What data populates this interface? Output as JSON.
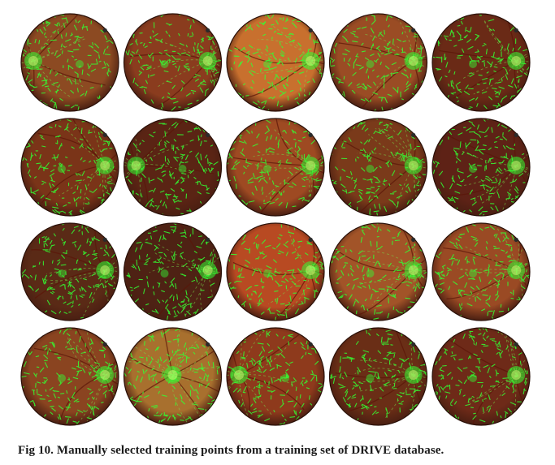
{
  "figure": {
    "rows": 4,
    "cols": 5,
    "caption": "Fig 10.  Manually selected training points from a training set of DRIVE database.",
    "colors": {
      "fundus_dark": "#4a1f12",
      "fundus_mid": "#8a3a1c",
      "fundus_bright": "#c96a2a",
      "training_points": "#33ff33",
      "vessel_overlay": "#7adf4a"
    },
    "images": [
      {
        "tone": "#8c4a22",
        "disc": "left"
      },
      {
        "tone": "#8a3c1e",
        "disc": "right"
      },
      {
        "tone": "#c8702e",
        "disc": "right"
      },
      {
        "tone": "#9a4c24",
        "disc": "right"
      },
      {
        "tone": "#6a2a16",
        "disc": "right"
      },
      {
        "tone": "#7a3418",
        "disc": "right"
      },
      {
        "tone": "#5a2414",
        "disc": "left"
      },
      {
        "tone": "#9e4a22",
        "disc": "right"
      },
      {
        "tone": "#7a3a1a",
        "disc": "right"
      },
      {
        "tone": "#5e2216",
        "disc": "right"
      },
      {
        "tone": "#5a2a16",
        "disc": "right"
      },
      {
        "tone": "#4e2214",
        "disc": "right"
      },
      {
        "tone": "#b84a22",
        "disc": "right"
      },
      {
        "tone": "#a25428",
        "disc": "right"
      },
      {
        "tone": "#9a4a24",
        "disc": "right"
      },
      {
        "tone": "#8a4420",
        "disc": "right"
      },
      {
        "tone": "#a8702e",
        "disc": "center"
      },
      {
        "tone": "#8e3a1c",
        "disc": "left"
      },
      {
        "tone": "#6a2e16",
        "disc": "right"
      },
      {
        "tone": "#6e2a18",
        "disc": "right"
      }
    ]
  }
}
